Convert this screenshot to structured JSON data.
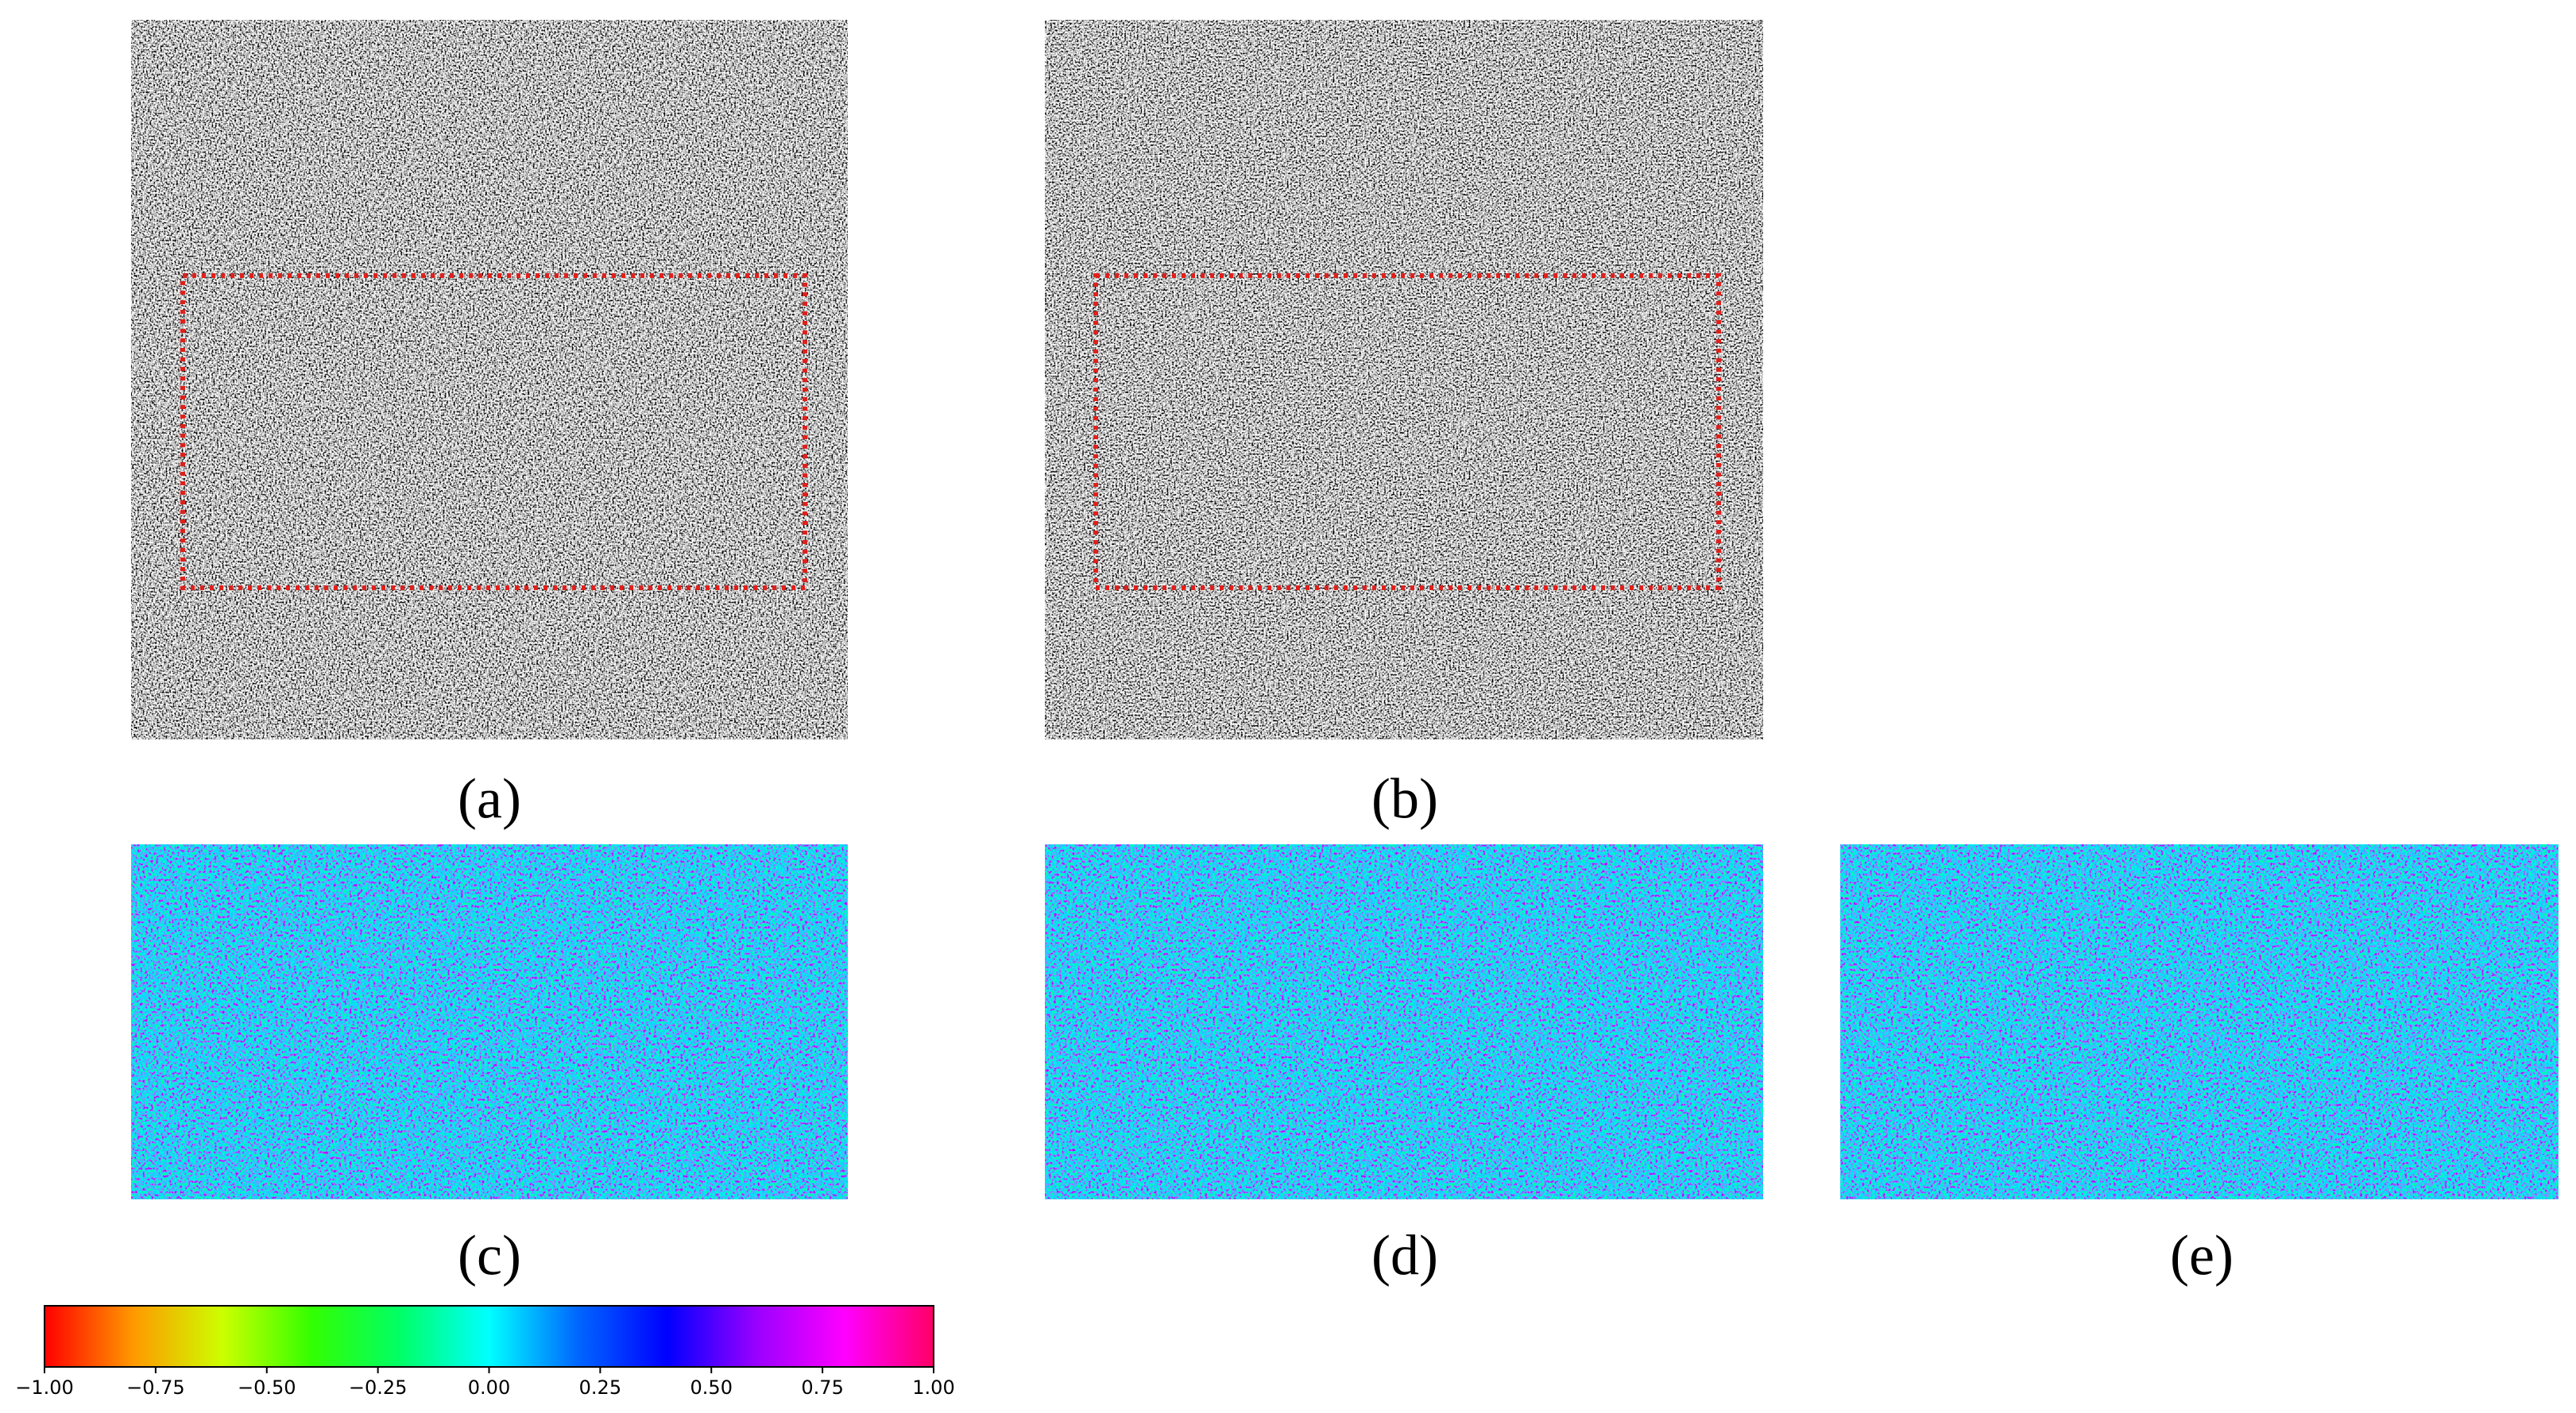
{
  "panels": [
    {
      "label": "(a)"
    },
    {
      "label": "(b)"
    },
    {
      "label": "(c)"
    },
    {
      "label": "(d)"
    },
    {
      "label": "(e)"
    }
  ],
  "chart_data": {
    "type": "colorbar",
    "xlim": [
      -1,
      1
    ],
    "xticks": [
      {
        "value": -1,
        "label": "−1.00"
      },
      {
        "value": -0.75,
        "label": "−0.75"
      },
      {
        "value": -0.5,
        "label": "−0.50"
      },
      {
        "value": -0.25,
        "label": "−0.25"
      },
      {
        "value": 0,
        "label": "0.00"
      },
      {
        "value": 0.25,
        "label": "0.25"
      },
      {
        "value": 0.5,
        "label": "0.50"
      },
      {
        "value": 0.75,
        "label": "0.75"
      },
      {
        "value": 1,
        "label": "1.00"
      }
    ],
    "colors": [
      "#ff0000",
      "#ff9900",
      "#ccff00",
      "#33ff00",
      "#00ff66",
      "#00ffff",
      "#0066ff",
      "#0000ff",
      "#9900ff",
      "#ff00ff",
      "#ff0066"
    ]
  }
}
